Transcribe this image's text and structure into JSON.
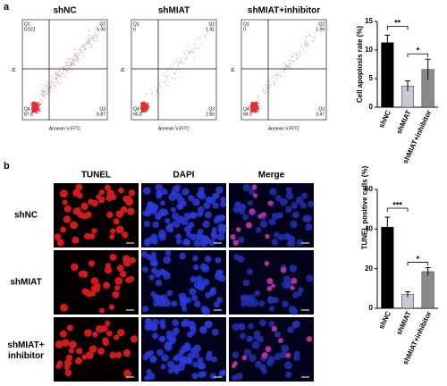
{
  "panel_a": {
    "label": "a",
    "flow_plots": [
      {
        "title": "shNC",
        "y_label": "PI",
        "x_label": "Annexin V-FITC",
        "quadrants": [
          {
            "name": "Q1",
            "value": "0.021"
          },
          {
            "name": "Q2",
            "value": "5.30"
          },
          {
            "name": "Q3",
            "value": "6.87"
          },
          {
            "name": "Q4",
            "value": "87.8"
          }
        ]
      },
      {
        "title": "shMIAT",
        "y_label": "PI",
        "x_label": "Annexin V-FITC",
        "quadrants": [
          {
            "name": "Q1",
            "value": "0"
          },
          {
            "name": "Q2",
            "value": "1.41"
          },
          {
            "name": "Q3",
            "value": "2.83"
          },
          {
            "name": "Q4",
            "value": "95.8"
          }
        ]
      },
      {
        "title": "shMIAT+inhibitor",
        "y_label": "PI",
        "x_label": "Annexin V-FITC",
        "quadrants": [
          {
            "name": "Q1",
            "value": "0"
          },
          {
            "name": "Q2",
            "value": "1.99"
          },
          {
            "name": "Q3",
            "value": "3.47"
          },
          {
            "name": "Q4",
            "value": "94.5"
          }
        ]
      }
    ]
  },
  "panel_b": {
    "label": "b",
    "columns": [
      "TUNEL",
      "DAPI",
      "Merge"
    ],
    "rows": [
      "shNC",
      "shMIAT",
      "shMIAT+ inhibitor"
    ]
  },
  "chart_data": [
    {
      "type": "bar",
      "y_label": "Cell apoptosis rate (%)",
      "categories": [
        "shNC",
        "shMIAT",
        "shMIAT+inhibitor"
      ],
      "values": [
        11.3,
        3.7,
        6.6
      ],
      "errors": [
        1.3,
        0.9,
        1.8
      ],
      "colors": [
        "#000000",
        "#c9c9d3",
        "#8a8a8a"
      ],
      "ylim": [
        0,
        15
      ],
      "yticks": [
        0,
        5,
        10,
        15
      ],
      "annotations": [
        "**",
        "*"
      ]
    },
    {
      "type": "bar",
      "y_label": "TUNEL positive cells (%)",
      "categories": [
        "shNC",
        "shMIAT",
        "shMIAT+inhibitor"
      ],
      "values": [
        41,
        7,
        18.5
      ],
      "errors": [
        5,
        1.3,
        2
      ],
      "colors": [
        "#000000",
        "#c9c9d3",
        "#8a8a8a"
      ],
      "ylim": [
        0,
        60
      ],
      "yticks": [
        0,
        20,
        40,
        60
      ],
      "annotations": [
        "***",
        "*"
      ]
    }
  ]
}
